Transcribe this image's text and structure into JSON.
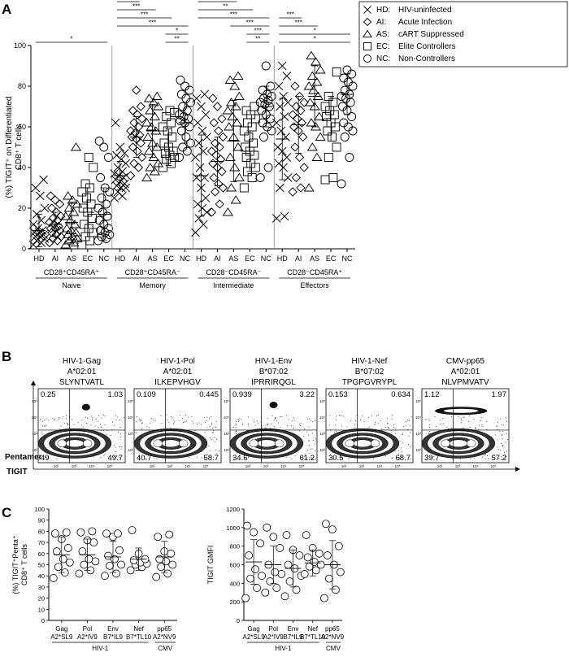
{
  "panel_labels": [
    "A",
    "B",
    "C"
  ],
  "chart_data": [
    {
      "id": "A",
      "type": "scatter",
      "ylabel": "(%) TIGIT⁺ on Differentiated CD8⁺ T cells",
      "ylim": [
        0,
        100
      ],
      "yticks": [
        "0",
        "20",
        "40",
        "60",
        "80",
        "100"
      ],
      "categories": [
        "HD",
        "AI",
        "AS",
        "EC",
        "NC"
      ],
      "legend": {
        "placement": "top-right",
        "entries": [
          {
            "symbol": "x",
            "code": "HD:",
            "text": "HIV-uninfected"
          },
          {
            "symbol": "diamond",
            "code": "AI:",
            "text": "Acute Infection"
          },
          {
            "symbol": "triangle",
            "code": "AS:",
            "text": "cART Suppressed"
          },
          {
            "symbol": "square",
            "code": "EC:",
            "text": "Elite Controllers"
          },
          {
            "symbol": "circle",
            "code": "NC:",
            "text": "Non-Controllers"
          }
        ]
      },
      "groups": [
        {
          "name_l1": "CD28⁺CD45RA⁺",
          "name_l2": "Naive",
          "series": {
            "HD": [
              2,
              3,
              4,
              5,
              6,
              6,
              7,
              8,
              8,
              9,
              10,
              12,
              14,
              17,
              20,
              26,
              30,
              34
            ],
            "AI": [
              3,
              4,
              5,
              6,
              7,
              8,
              9,
              10,
              10,
              11,
              12,
              13,
              14,
              15,
              16,
              18,
              20,
              22,
              24,
              26
            ],
            "AS": [
              2,
              3,
              4,
              5,
              6,
              7,
              8,
              9,
              10,
              12,
              14,
              16,
              18,
              20,
              22,
              24,
              26,
              50
            ],
            "EC": [
              2,
              4,
              6,
              8,
              10,
              12,
              15,
              18,
              20,
              22,
              25,
              28,
              30,
              32,
              40,
              45
            ],
            "NC": [
              4,
              5,
              6,
              7,
              8,
              9,
              10,
              12,
              14,
              16,
              18,
              20,
              22,
              25,
              28,
              30,
              35,
              45,
              50,
              53
            ]
          },
          "means": {
            "HD": 9,
            "AI": 12,
            "AS": 13,
            "EC": 18,
            "NC": 17
          },
          "sds": {
            "HD": 8,
            "AI": 6,
            "AS": 10,
            "EC": 12,
            "NC": 13
          },
          "sig": [
            {
              "a": "HD",
              "b": "NC",
              "label": "*"
            }
          ]
        },
        {
          "name_l1": "CD28⁺CD45RA⁻",
          "name_l2": "Memory",
          "series": {
            "HD": [
              25,
              26,
              28,
              30,
              30,
              31,
              32,
              33,
              34,
              35,
              36,
              37,
              38,
              40,
              42,
              44,
              46,
              47,
              50,
              62
            ],
            "AI": [
              36,
              40,
              42,
              45,
              48,
              50,
              52,
              54,
              55,
              56,
              57,
              58,
              60,
              62,
              64,
              66,
              68,
              70,
              78
            ],
            "AS": [
              35,
              38,
              40,
              42,
              45,
              48,
              50,
              52,
              55,
              58,
              60,
              62,
              65,
              68,
              70,
              72,
              74,
              75
            ],
            "EC": [
              40,
              42,
              44,
              45,
              46,
              47,
              48,
              50,
              52,
              55,
              58,
              60,
              62,
              65,
              67,
              68
            ],
            "NC": [
              45,
              48,
              50,
              52,
              55,
              58,
              60,
              62,
              63,
              64,
              65,
              66,
              68,
              70,
              72,
              74,
              76,
              78,
              80,
              83
            ]
          },
          "means": {
            "HD": 36,
            "AI": 55,
            "AS": 58,
            "EC": 50,
            "NC": 62
          },
          "sds": {
            "HD": 7,
            "AI": 10,
            "AS": 13,
            "EC": 9,
            "NC": 10
          },
          "sig": [
            {
              "a": "HD",
              "b": "AI",
              "label": "***"
            },
            {
              "a": "HD",
              "b": "AS",
              "label": "***"
            },
            {
              "a": "HD",
              "b": "EC",
              "label": "***"
            },
            {
              "a": "HD",
              "b": "NC",
              "label": "***"
            },
            {
              "a": "EC",
              "b": "NC",
              "label": "*"
            },
            {
              "a": "EC",
              "b": "NC",
              "label": "**"
            }
          ]
        },
        {
          "name_l1": "CD28⁻CD45RA⁻",
          "name_l2": "Intermediate",
          "series": {
            "HD": [
              8,
              12,
              15,
              18,
              20,
              22,
              25,
              30,
              35,
              35,
              40,
              45,
              48,
              52,
              55,
              58,
              62,
              66,
              70,
              74,
              76
            ],
            "AI": [
              18,
              22,
              28,
              30,
              32,
              35,
              38,
              40,
              42,
              44,
              46,
              48,
              50,
              52,
              55,
              58,
              62,
              64,
              70,
              74
            ],
            "AS": [
              18,
              24,
              30,
              35,
              40,
              45,
              50,
              55,
              60,
              62,
              65,
              68,
              70,
              72,
              75,
              80,
              83,
              85
            ],
            "EC": [
              30,
              35,
              38,
              40,
              42,
              45,
              46,
              48,
              50,
              52,
              55,
              58,
              60,
              62,
              64,
              66,
              68,
              70
            ],
            "NC": [
              35,
              40,
              55,
              58,
              60,
              62,
              64,
              66,
              68,
              70,
              71,
              72,
              73,
              74,
              75,
              76,
              78,
              80,
              90
            ]
          },
          "means": {
            "HD": 36,
            "AI": 43,
            "AS": 53,
            "EC": 48,
            "NC": 70
          },
          "sds": {
            "HD": 20,
            "AI": 12,
            "AS": 20,
            "EC": 10,
            "NC": 10
          },
          "sig": [
            {
              "a": "HD",
              "b": "AS",
              "label": "***"
            },
            {
              "a": "HD",
              "b": "EC",
              "label": "**"
            },
            {
              "a": "HD",
              "b": "NC",
              "label": "***"
            },
            {
              "a": "AS",
              "b": "NC",
              "label": "***"
            },
            {
              "a": "EC",
              "b": "NC",
              "label": "***"
            },
            {
              "a": "EC",
              "b": "NC",
              "label": "**"
            }
          ]
        },
        {
          "name_l1": "CD28⁻CD45RA⁺",
          "name_l2": "Effectors",
          "series": {
            "HD": [
              15,
              16,
              30,
              35,
              40,
              42,
              45,
              48,
              50,
              55,
              58,
              62,
              65,
              70,
              72,
              75,
              80,
              85,
              90
            ],
            "AI": [
              28,
              30,
              35,
              40,
              45,
              50,
              55,
              58,
              60,
              62,
              64,
              66,
              68,
              70,
              72,
              75,
              80
            ],
            "AS": [
              30,
              45,
              50,
              55,
              60,
              62,
              65,
              70,
              72,
              75,
              78,
              80,
              82,
              85,
              88,
              92,
              95
            ],
            "EC": [
              34,
              35,
              45,
              50,
              55,
              58,
              60,
              62,
              65,
              66,
              68,
              70,
              72,
              75,
              87
            ],
            "NC": [
              32,
              45,
              55,
              58,
              60,
              62,
              65,
              68,
              70,
              72,
              74,
              75,
              76,
              78,
              80,
              82,
              84,
              86,
              88
            ]
          },
          "means": {
            "HD": 54,
            "AI": 61,
            "AS": 75,
            "EC": 64,
            "NC": 76
          },
          "sds": {
            "HD": 20,
            "AI": 14,
            "AS": 15,
            "EC": 11,
            "NC": 10
          },
          "sig": [
            {
              "a": "HD",
              "b": "AI",
              "label": "***"
            },
            {
              "a": "HD",
              "b": "AS",
              "label": "***"
            },
            {
              "a": "HD",
              "b": "NC",
              "label": "*"
            },
            {
              "a": "HD",
              "b": "NC",
              "label": "*"
            }
          ]
        }
      ]
    },
    {
      "id": "B",
      "type": "scatter",
      "subtype": "flow-cytometry",
      "ylabel": "Pentamer",
      "xlabel": "TIGIT",
      "axis_ticks": [
        "10²",
        "10³",
        "10⁴",
        "10⁵"
      ],
      "plots": [
        {
          "title": [
            "HIV-1-Gag",
            "A*02:01",
            "SLYNTVATL"
          ],
          "q": [
            "0.25",
            "1.03",
            "49",
            "49.7"
          ],
          "pos_fraction": 0.5,
          "cluster": {
            "x": 0.55,
            "y": 0.75
          }
        },
        {
          "title": [
            "HIV-1-Pol",
            "A*02:01",
            "ILKEPVHGV"
          ],
          "q": [
            "0.109",
            "0.445",
            "40.7",
            "58.7"
          ],
          "pos_fraction": 0.59,
          "cluster": null
        },
        {
          "title": [
            "HIV-1-Env",
            "B*07:02",
            "IPRRIRQGL"
          ],
          "q": [
            "0.939",
            "3.22",
            "34.6",
            "61.2"
          ],
          "pos_fraction": 0.64,
          "cluster": {
            "x": 0.5,
            "y": 0.78
          }
        },
        {
          "title": [
            "HIV-1-Nef",
            "B*07:02",
            "TPGPGVRYPL"
          ],
          "q": [
            "0.153",
            "0.634",
            "30.5",
            "68.7"
          ],
          "pos_fraction": 0.69,
          "cluster": null
        },
        {
          "title": [
            "CMV-pp65",
            "A*02:01",
            "NLVPMVATV"
          ],
          "q": [
            "1.12",
            "1.97",
            "39.7",
            "57.2"
          ],
          "pos_fraction": 0.59,
          "cluster": {
            "x": 0.45,
            "y": 0.7,
            "wide": true
          }
        }
      ]
    },
    {
      "id": "C-left",
      "type": "scatter",
      "ylabel": "(%) TIGIT⁺Penta⁺ CD8⁺ T cells",
      "ylim": [
        0,
        100
      ],
      "yticks": [
        "0",
        "10",
        "20",
        "30",
        "40",
        "50",
        "60",
        "70",
        "80",
        "90",
        "100"
      ],
      "categories": [
        [
          "Gag",
          "A2*SL9"
        ],
        [
          "Pol",
          "A2*IV9"
        ],
        [
          "Env",
          "B7*IL9"
        ],
        [
          "Nef",
          "B7*TL10"
        ],
        [
          "pp65",
          "A2*NV9"
        ]
      ],
      "hiv_label": "HIV-1",
      "cmv_label": "CMV",
      "series": [
        [
          38,
          43,
          48,
          52,
          55,
          62,
          65,
          73,
          78,
          79
        ],
        [
          42,
          45,
          50,
          53,
          55,
          62,
          70,
          72,
          79,
          80
        ],
        [
          40,
          42,
          49,
          50,
          55,
          58,
          63,
          75,
          78,
          78
        ],
        [
          45,
          48,
          50,
          51,
          52,
          54,
          55,
          60,
          81
        ],
        [
          39,
          42,
          48,
          50,
          53,
          55,
          60,
          62,
          75,
          77
        ]
      ],
      "means": [
        59,
        59,
        57,
        55,
        57
      ],
      "sds": [
        16,
        14,
        14,
        10,
        14
      ]
    },
    {
      "id": "C-right",
      "type": "scatter",
      "ylabel": "TIGIT GMFI",
      "ylim": [
        0,
        1200
      ],
      "yticks": [
        "0",
        "200",
        "400",
        "600",
        "800",
        "1000",
        "1200"
      ],
      "categories": [
        [
          "Gag",
          "A2*SL9"
        ],
        [
          "Pol",
          "A2*IV9"
        ],
        [
          "Env",
          "B7*IL9"
        ],
        [
          "Nef",
          "B7*TL10"
        ],
        [
          "pp65",
          "A2*NV9"
        ]
      ],
      "hiv_label": "HIV-1",
      "cmv_label": "CMV",
      "series": [
        [
          240,
          350,
          450,
          480,
          550,
          700,
          830,
          950,
          1020
        ],
        [
          300,
          350,
          420,
          500,
          520,
          600,
          780,
          900,
          1000
        ],
        [
          260,
          330,
          420,
          480,
          560,
          600,
          700,
          760,
          920
        ],
        [
          500,
          540,
          580,
          600,
          630,
          680,
          720,
          780,
          920
        ],
        [
          240,
          330,
          450,
          520,
          600,
          700,
          800,
          980,
          1040
        ]
      ],
      "means": [
        630,
        600,
        560,
        620,
        600
      ],
      "sds": [
        240,
        200,
        200,
        140,
        260
      ]
    }
  ]
}
